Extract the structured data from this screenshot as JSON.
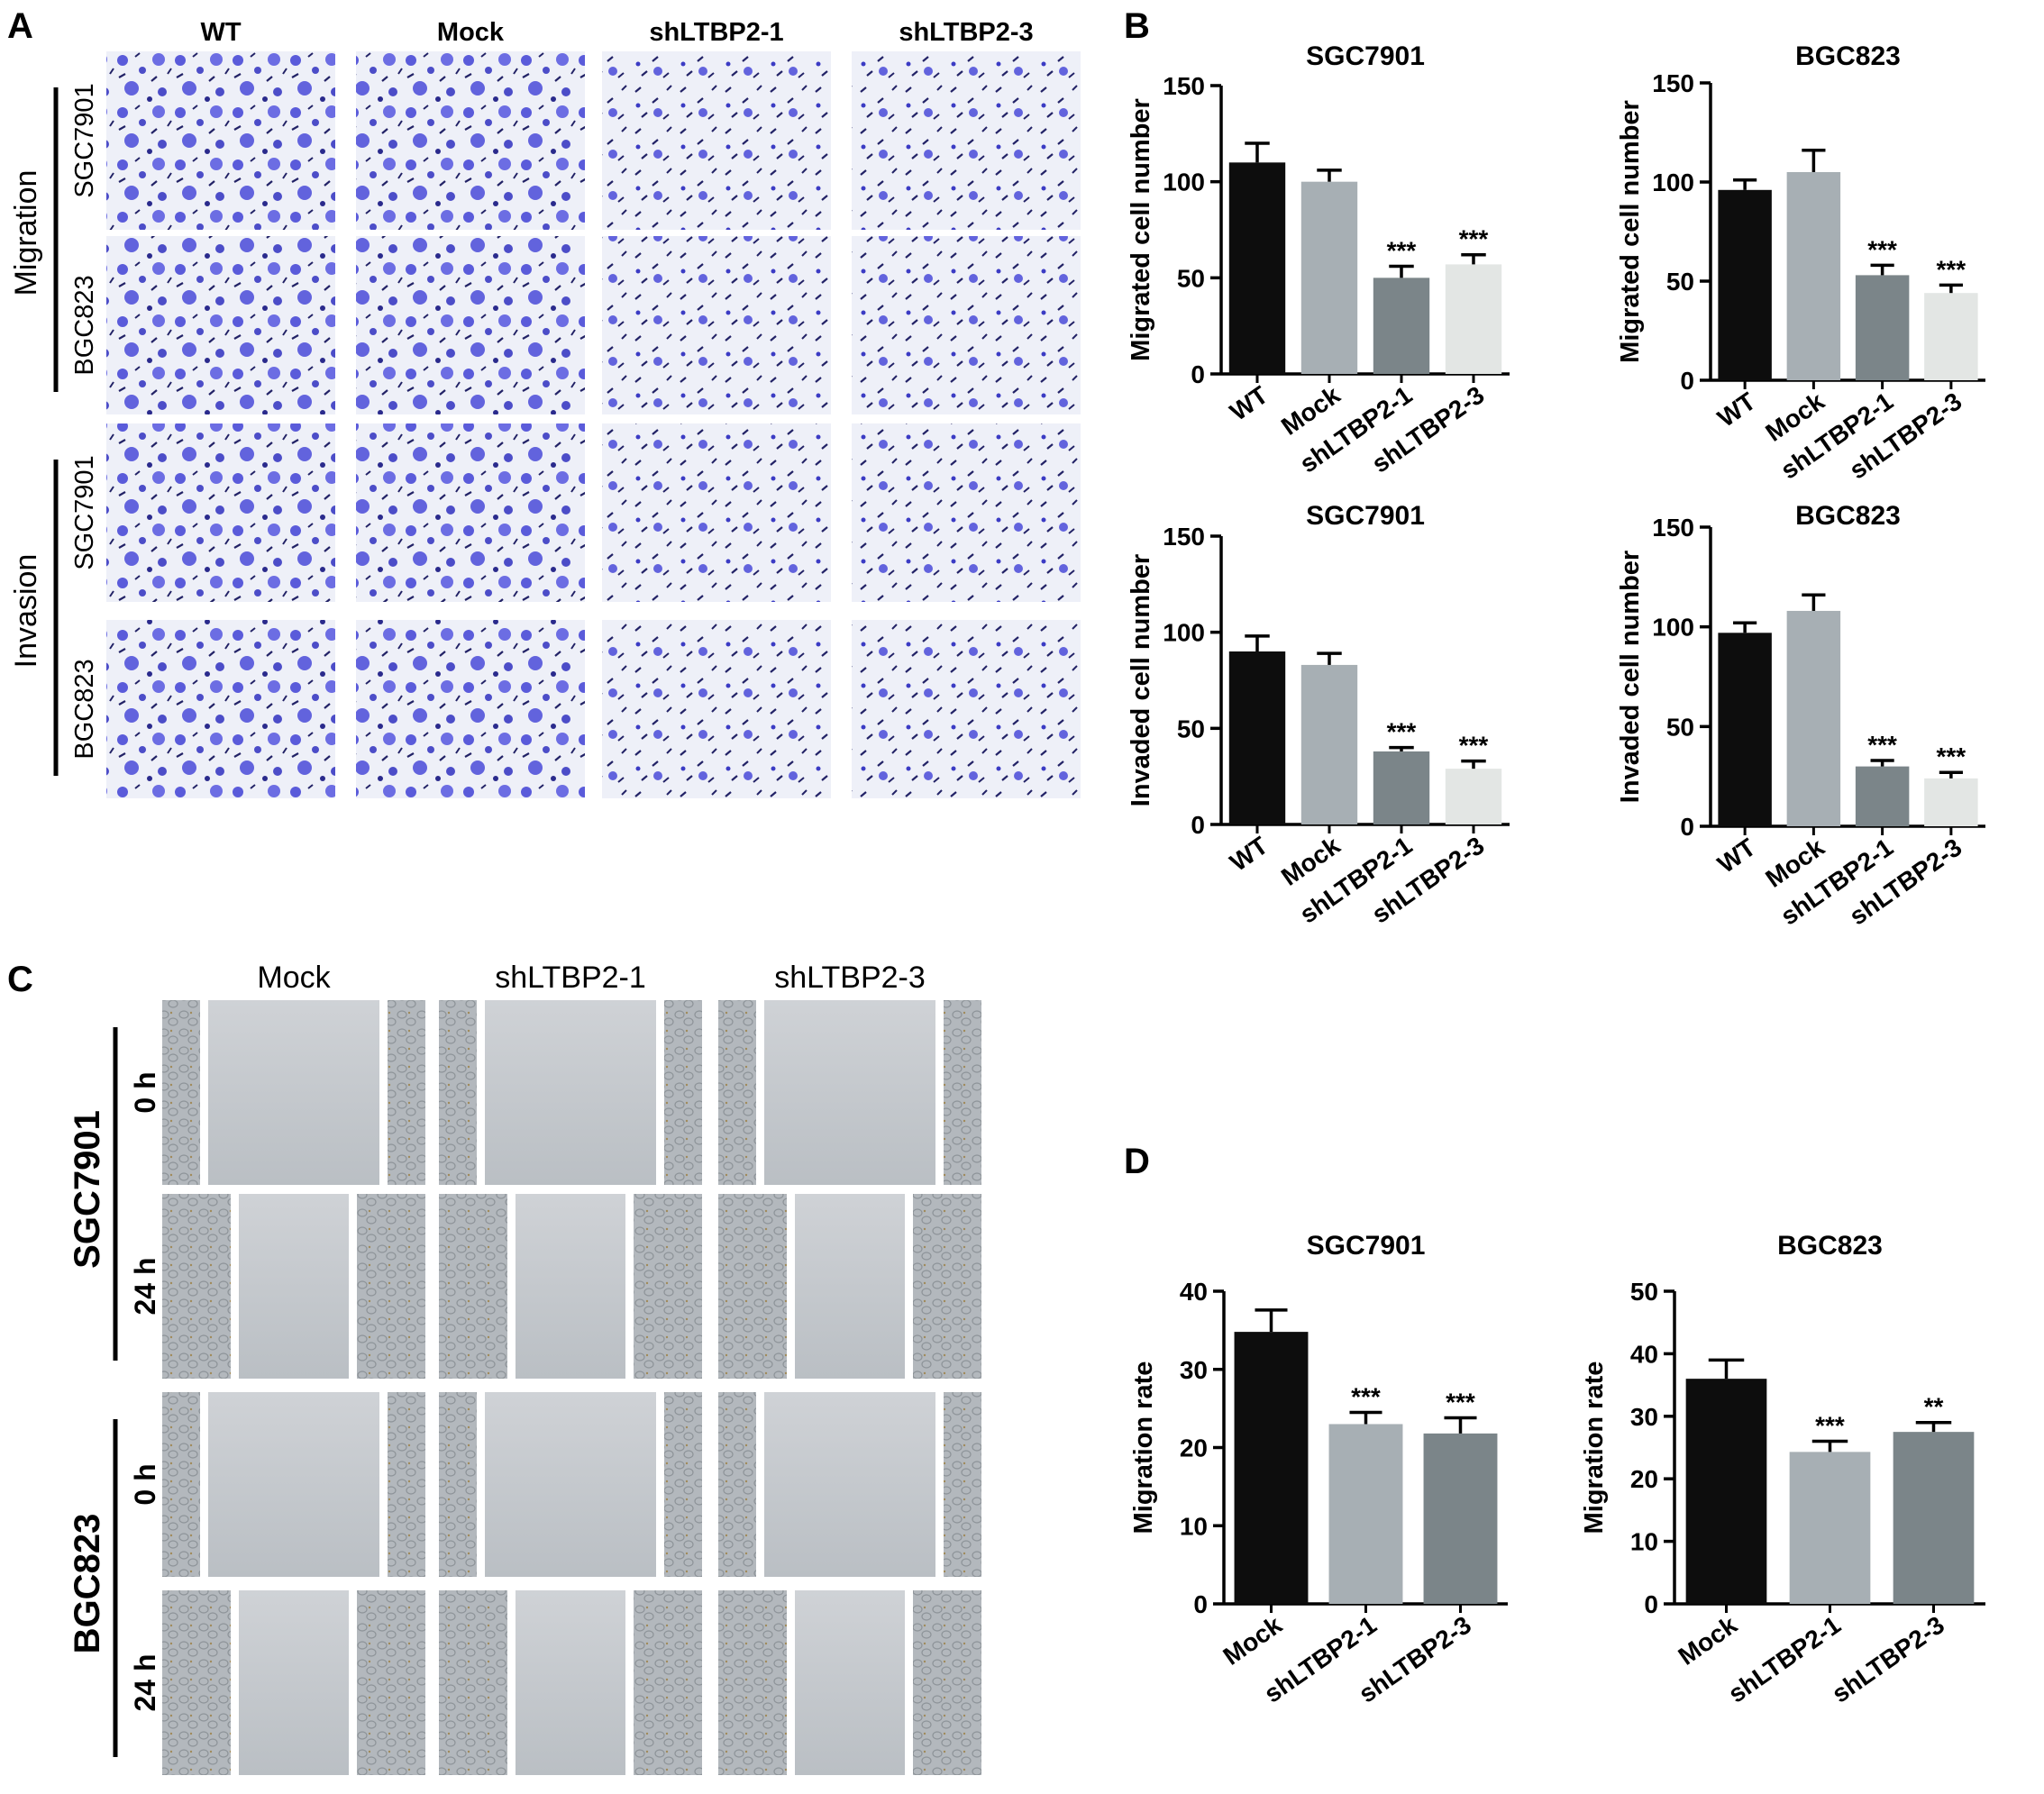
{
  "panels": {
    "A": {
      "letter": "A",
      "columns": [
        "WT",
        "Mock",
        "shLTBP2-1",
        "shLTBP2-3"
      ],
      "groups": [
        {
          "label": "Migration",
          "rows": [
            "SGC7901",
            "BGC823"
          ]
        },
        {
          "label": "Invasion",
          "rows": [
            "SGC7901",
            "BGC823"
          ]
        }
      ]
    },
    "B": {
      "letter": "B"
    },
    "C": {
      "letter": "C",
      "columns": [
        "Mock",
        "shLTBP2-1",
        "shLTBP2-3"
      ],
      "groups": [
        {
          "label": "SGC7901",
          "times": [
            "0 h",
            "24 h"
          ]
        },
        {
          "label": "BGC823",
          "times": [
            "0 h",
            "24 h"
          ]
        }
      ]
    },
    "D": {
      "letter": "D"
    }
  },
  "colors": {
    "stain": "#4a4ad8",
    "stain_bg": "#eef0f8",
    "wound_bg": "#c9ccd0",
    "edge_bg": "#b3b8bd",
    "bar_black": "#0d0d0d",
    "bar_grey_light": "#a7afb4",
    "bar_grey_dark": "#7b8589",
    "bar_lightest": "#e3e6e4"
  },
  "chart_data": [
    {
      "type": "bar",
      "panel": "B",
      "title": "SGC7901",
      "categories": [
        "WT",
        "Mock",
        "shLTBP2-1",
        "shLTBP2-3"
      ],
      "values": [
        110,
        100,
        50,
        57
      ],
      "errors": [
        10,
        6,
        6,
        5
      ],
      "significance": [
        "",
        "",
        "***",
        "***"
      ],
      "ylabel": "Migrated cell number",
      "ylim": [
        0,
        150
      ],
      "yticks": [
        0,
        50,
        100,
        150
      ],
      "bar_colors": [
        "#0d0d0d",
        "#a7afb4",
        "#7b8589",
        "#e3e6e4"
      ]
    },
    {
      "type": "bar",
      "panel": "B",
      "title": "BGC823",
      "categories": [
        "WT",
        "Mock",
        "shLTBP2-1",
        "shLTBP2-3"
      ],
      "values": [
        96,
        105,
        53,
        44
      ],
      "errors": [
        5,
        11,
        5,
        4
      ],
      "significance": [
        "",
        "",
        "***",
        "***"
      ],
      "ylabel": "Migrated cell number",
      "ylim": [
        0,
        150
      ],
      "yticks": [
        0,
        50,
        100,
        150
      ],
      "bar_colors": [
        "#0d0d0d",
        "#a7afb4",
        "#7b8589",
        "#e3e6e4"
      ]
    },
    {
      "type": "bar",
      "panel": "B",
      "title": "SGC7901",
      "categories": [
        "WT",
        "Mock",
        "shLTBP2-1",
        "shLTBP2-3"
      ],
      "values": [
        90,
        83,
        38,
        29
      ],
      "errors": [
        8,
        6,
        2,
        4
      ],
      "significance": [
        "",
        "",
        "***",
        "***"
      ],
      "ylabel": "Invaded cell number",
      "ylim": [
        0,
        150
      ],
      "yticks": [
        0,
        50,
        100,
        150
      ],
      "bar_colors": [
        "#0d0d0d",
        "#a7afb4",
        "#7b8589",
        "#e3e6e4"
      ]
    },
    {
      "type": "bar",
      "panel": "B",
      "title": "BGC823",
      "categories": [
        "WT",
        "Mock",
        "shLTBP2-1",
        "shLTBP2-3"
      ],
      "values": [
        97,
        108,
        30,
        24
      ],
      "errors": [
        5,
        8,
        3,
        3
      ],
      "significance": [
        "",
        "",
        "***",
        "***"
      ],
      "ylabel": "Invaded cell number",
      "ylim": [
        0,
        150
      ],
      "yticks": [
        0,
        50,
        100,
        150
      ],
      "bar_colors": [
        "#0d0d0d",
        "#a7afb4",
        "#7b8589",
        "#e3e6e4"
      ]
    },
    {
      "type": "bar",
      "panel": "D",
      "title": "SGC7901",
      "categories": [
        "Mock",
        "shLTBP2-1",
        "shLTBP2-3"
      ],
      "values": [
        34.8,
        23.0,
        21.8
      ],
      "errors": [
        2.8,
        1.5,
        2.0
      ],
      "significance": [
        "",
        "***",
        "***"
      ],
      "ylabel": "Migration rate",
      "ylim": [
        0,
        40
      ],
      "yticks": [
        0,
        10,
        20,
        30,
        40
      ],
      "bar_colors": [
        "#0d0d0d",
        "#a7afb4",
        "#7b8589"
      ]
    },
    {
      "type": "bar",
      "panel": "D",
      "title": "BGC823",
      "categories": [
        "Mock",
        "shLTBP2-1",
        "shLTBP2-3"
      ],
      "values": [
        36.0,
        24.3,
        27.5
      ],
      "errors": [
        3.0,
        1.7,
        1.5
      ],
      "significance": [
        "",
        "***",
        "**"
      ],
      "ylabel": "Migration rate",
      "ylim": [
        0,
        50
      ],
      "yticks": [
        0,
        10,
        20,
        30,
        40,
        50
      ],
      "bar_colors": [
        "#0d0d0d",
        "#a7afb4",
        "#7b8589"
      ]
    }
  ]
}
